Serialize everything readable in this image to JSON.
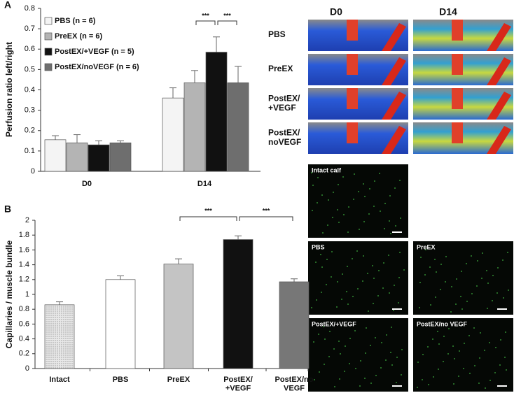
{
  "chart_data": [
    {
      "type": "bar",
      "panel": "A",
      "y_label": "Perfusion ratio left/right",
      "categories": [
        "D0",
        "D14"
      ],
      "series": [
        {
          "name": "PBS (n = 6)",
          "color": "#f4f4f4",
          "values": [
            0.155,
            0.36
          ],
          "errors": [
            0.02,
            0.05
          ]
        },
        {
          "name": "PreEX (n = 6)",
          "color": "#b4b4b4",
          "values": [
            0.14,
            0.435
          ],
          "errors": [
            0.04,
            0.06
          ]
        },
        {
          "name": "PostEX/+VEGF (n = 5)",
          "color": "#111111",
          "values": [
            0.13,
            0.585
          ],
          "errors": [
            0.02,
            0.075
          ]
        },
        {
          "name": "PostEX/noVEGF (n = 6)",
          "color": "#6e6e6e",
          "values": [
            0.14,
            0.435
          ],
          "errors": [
            0.01,
            0.08
          ]
        }
      ],
      "annotations": [
        "***",
        "***"
      ],
      "ylim": [
        0,
        0.8
      ],
      "yticks": [
        0,
        0.1,
        0.2,
        0.3,
        0.4,
        0.5,
        0.6,
        0.7,
        0.8
      ],
      "legend": "upper left"
    },
    {
      "type": "bar",
      "panel": "B",
      "y_label": "Capillaries / muscle bundle",
      "categories": [
        "Intact",
        "PBS",
        "PreEX",
        "PostEX/\n+VEGF",
        "PostEX/no\nVEGF"
      ],
      "values": [
        0.86,
        1.2,
        1.41,
        1.74,
        1.17
      ],
      "errors": [
        0.04,
        0.05,
        0.07,
        0.05,
        0.04
      ],
      "colors": [
        "hatch",
        "#ffffff",
        "#c4c4c4",
        "#111111",
        "#777777"
      ],
      "annotations": [
        "***",
        "***"
      ],
      "ylim": [
        0,
        2
      ],
      "yticks": [
        0,
        0.2,
        0.4,
        0.6,
        0.8,
        1,
        1.2,
        1.4,
        1.6,
        1.8,
        2
      ]
    }
  ],
  "images": {
    "columns": [
      "D0",
      "D14"
    ],
    "rows": [
      "PBS",
      "PreEX",
      "PostEX/\n+VEGF",
      "PostEX/\nnoVEGF"
    ],
    "micrographs": [
      "Intact calf",
      "PBS",
      "PreEX",
      "PostEX/+VEGF",
      "PostEX/no VEGF"
    ]
  }
}
